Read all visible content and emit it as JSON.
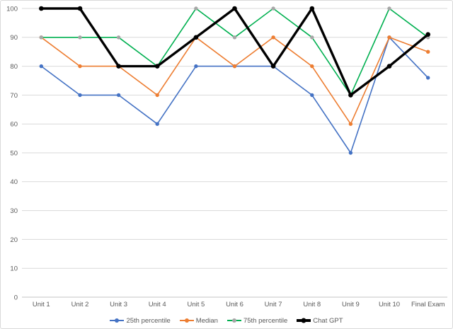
{
  "chart_data": {
    "type": "line",
    "categories": [
      "Unit 1",
      "Unit 2",
      "Unit 3",
      "Unit 4",
      "Unit 5",
      "Unit 6",
      "Unit 7",
      "Unit 8",
      "Unit 9",
      "Unit 10",
      "Final Exam"
    ],
    "series": [
      {
        "name": "25th percentile",
        "color": "#4472C4",
        "marker_color": "#4472C4",
        "line_width": 1.6,
        "marker_radius": 2.7,
        "values": [
          80,
          70,
          70,
          60,
          80,
          80,
          80,
          70,
          50,
          90,
          76
        ]
      },
      {
        "name": "Median",
        "color": "#ED7D31",
        "marker_color": "#ED7D31",
        "line_width": 1.6,
        "marker_radius": 2.7,
        "values": [
          90,
          80,
          80,
          70,
          90,
          80,
          90,
          80,
          60,
          90,
          85
        ]
      },
      {
        "name": "75th percentile",
        "color": "#00B050",
        "marker_color": "#A6A6A6",
        "line_width": 1.6,
        "marker_radius": 2.7,
        "values": [
          90,
          90,
          90,
          80,
          100,
          90,
          100,
          90,
          70,
          100,
          90
        ]
      },
      {
        "name": "Chat GPT",
        "color": "#000000",
        "marker_color": "#000000",
        "line_width": 3.4,
        "marker_radius": 3.3,
        "values": [
          100,
          100,
          80,
          80,
          90,
          100,
          80,
          100,
          70,
          80,
          91
        ]
      }
    ],
    "ylim": [
      0,
      100
    ],
    "y_tick_step": 10,
    "y_tick_labels": [
      "0",
      "10",
      "20",
      "30",
      "40",
      "50",
      "60",
      "70",
      "80",
      "90",
      "100"
    ],
    "grid": {
      "horizontal": true,
      "color": "#D9D9D9",
      "axis_line_color": "#C6C6C6"
    },
    "tick_label_color": "#595959",
    "legend_position": "bottom",
    "background": "#FFFFFF",
    "border_color": "#D9D9D9"
  }
}
